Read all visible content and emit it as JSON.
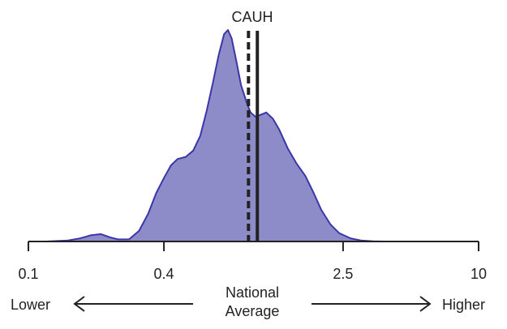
{
  "chart_data": {
    "type": "area",
    "title": "CAUH",
    "x_scale": "log",
    "xlim": [
      0.1,
      10
    ],
    "ticks": [
      0.1,
      0.4,
      2.5,
      10
    ],
    "tick_labels": [
      "0.1",
      "0.4",
      "2.5",
      "10"
    ],
    "density_curve": {
      "x": [
        0.12,
        0.15,
        0.17,
        0.19,
        0.21,
        0.23,
        0.25,
        0.28,
        0.31,
        0.34,
        0.37,
        0.4,
        0.43,
        0.46,
        0.5,
        0.54,
        0.58,
        0.62,
        0.66,
        0.7,
        0.74,
        0.77,
        0.8,
        0.84,
        0.88,
        0.93,
        0.97,
        1.02,
        1.08,
        1.14,
        1.22,
        1.3,
        1.42,
        1.55,
        1.7,
        1.85,
        2.0,
        2.2,
        2.4,
        2.7,
        3.0,
        3.4,
        3.8
      ],
      "y": [
        0,
        0.005,
        0.015,
        0.03,
        0.035,
        0.02,
        0.01,
        0.01,
        0.05,
        0.13,
        0.23,
        0.3,
        0.36,
        0.39,
        0.4,
        0.43,
        0.5,
        0.62,
        0.75,
        0.88,
        0.98,
        1.0,
        0.96,
        0.85,
        0.74,
        0.66,
        0.61,
        0.59,
        0.6,
        0.61,
        0.58,
        0.53,
        0.44,
        0.37,
        0.31,
        0.23,
        0.15,
        0.08,
        0.04,
        0.015,
        0.005,
        0.001,
        0
      ]
    },
    "reference_lines": [
      {
        "style": "dashed",
        "x": 0.95
      },
      {
        "style": "solid",
        "x": 1.04
      }
    ],
    "colors": {
      "fill": "#8e8cc8",
      "stroke": "#3a36a8",
      "line": "#222222"
    }
  },
  "annotations": {
    "lower_label": "Lower",
    "national_average_line1": "National",
    "national_average_line2": "Average",
    "higher_label": "Higher"
  }
}
